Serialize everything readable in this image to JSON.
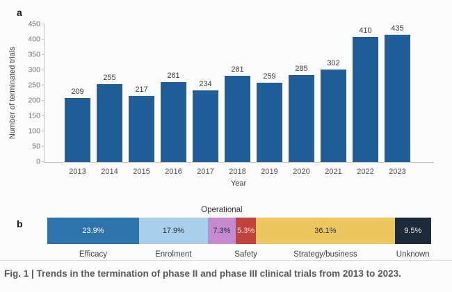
{
  "caption": "Fig. 1 | Trends in the termination of phase II and phase III clinical trials from 2013 to 2023.",
  "panel_a": {
    "label": "a"
  },
  "panel_b": {
    "label": "b"
  },
  "colors": {
    "bar_blue": "#1f5e99",
    "axis_gray": "#c3c3c3"
  },
  "chart_data": [
    {
      "id": "terminated-trials-by-year",
      "type": "bar",
      "title": "",
      "xlabel": "Year",
      "ylabel": "Number of terminated trials",
      "categories": [
        "2013",
        "2014",
        "2015",
        "2016",
        "2017",
        "2018",
        "2019",
        "2020",
        "2021",
        "2022",
        "2023"
      ],
      "values": [
        209,
        255,
        217,
        261,
        234,
        281,
        259,
        285,
        302,
        410,
        435
      ],
      "ylim": [
        0,
        450
      ],
      "yticks": [
        0,
        50,
        100,
        150,
        200,
        250,
        300,
        350,
        400,
        450
      ],
      "grid": false,
      "legend": "none",
      "bar_color": "#1f5e99",
      "value_labels_shown": true
    },
    {
      "id": "termination-reasons-percent",
      "type": "bar",
      "subtype": "stacked-horizontal-percent",
      "title": "",
      "legend": "none",
      "segments": [
        {
          "label": "Efficacy",
          "value_pct": 23.9,
          "display": "23.9%",
          "color": "#2d73ac",
          "text_color": "#ffffff",
          "label_position": "below"
        },
        {
          "label": "Enrolment",
          "value_pct": 17.9,
          "display": "17.9%",
          "color": "#aacfea",
          "text_color": "#28313f",
          "label_position": "below"
        },
        {
          "label": "Operational",
          "value_pct": 7.3,
          "display": "7.3%",
          "color": "#c489cf",
          "text_color": "#28313f",
          "label_position": "above"
        },
        {
          "label": "Safety",
          "value_pct": 5.3,
          "display": "5.3%",
          "color": "#c2423e",
          "text_color": "#f3e3e2",
          "label_position": "below"
        },
        {
          "label": "Strategy/business",
          "value_pct": 36.1,
          "display": "36.1%",
          "color": "#ecc75f",
          "text_color": "#2e3442",
          "label_position": "below"
        },
        {
          "label": "Unknown",
          "value_pct": 9.5,
          "display": "9.5%",
          "color": "#1c2a3a",
          "text_color": "#e9ebee",
          "label_position": "below"
        }
      ]
    }
  ]
}
